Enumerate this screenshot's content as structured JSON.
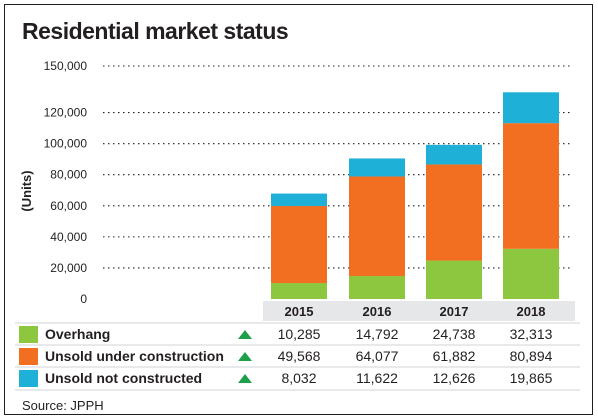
{
  "title": "Residential market status",
  "source": "Source: JPPH",
  "colors": {
    "overhang": "#8dc63f",
    "unsold_under_construction": "#f26f21",
    "unsold_not_constructed": "#1fb0d8",
    "trend_arrow": "#1e9f4a",
    "text": "#231f20",
    "grid": "#231f20",
    "category_band": "#e6e7e8"
  },
  "chart_data": {
    "type": "bar",
    "stacked": true,
    "title": "Residential market status",
    "xlabel": "",
    "ylabel": "(Units)",
    "ylim": [
      0,
      150000
    ],
    "yticks": [
      0,
      20000,
      40000,
      60000,
      80000,
      100000,
      120000,
      150000
    ],
    "ytick_labels": [
      "0",
      "20,000",
      "40,000",
      "60,000",
      "80,000",
      "100,000",
      "120,000",
      "150,000"
    ],
    "grid": true,
    "categories": [
      "2015",
      "2016",
      "2017",
      "2018"
    ],
    "series": [
      {
        "name": "Overhang",
        "values": [
          10285,
          14792,
          24738,
          32313
        ],
        "labels": [
          "10,285",
          "14,792",
          "24,738",
          "32,313"
        ]
      },
      {
        "name": "Unsold under construction",
        "values": [
          49568,
          64077,
          61882,
          80894
        ],
        "labels": [
          "49,568",
          "64,077",
          "61,882",
          "80,894"
        ]
      },
      {
        "name": "Unsold not constructed",
        "values": [
          8032,
          11622,
          12626,
          19865
        ],
        "labels": [
          "8,032",
          "11,622",
          "12,626",
          "19,865"
        ]
      }
    ]
  }
}
